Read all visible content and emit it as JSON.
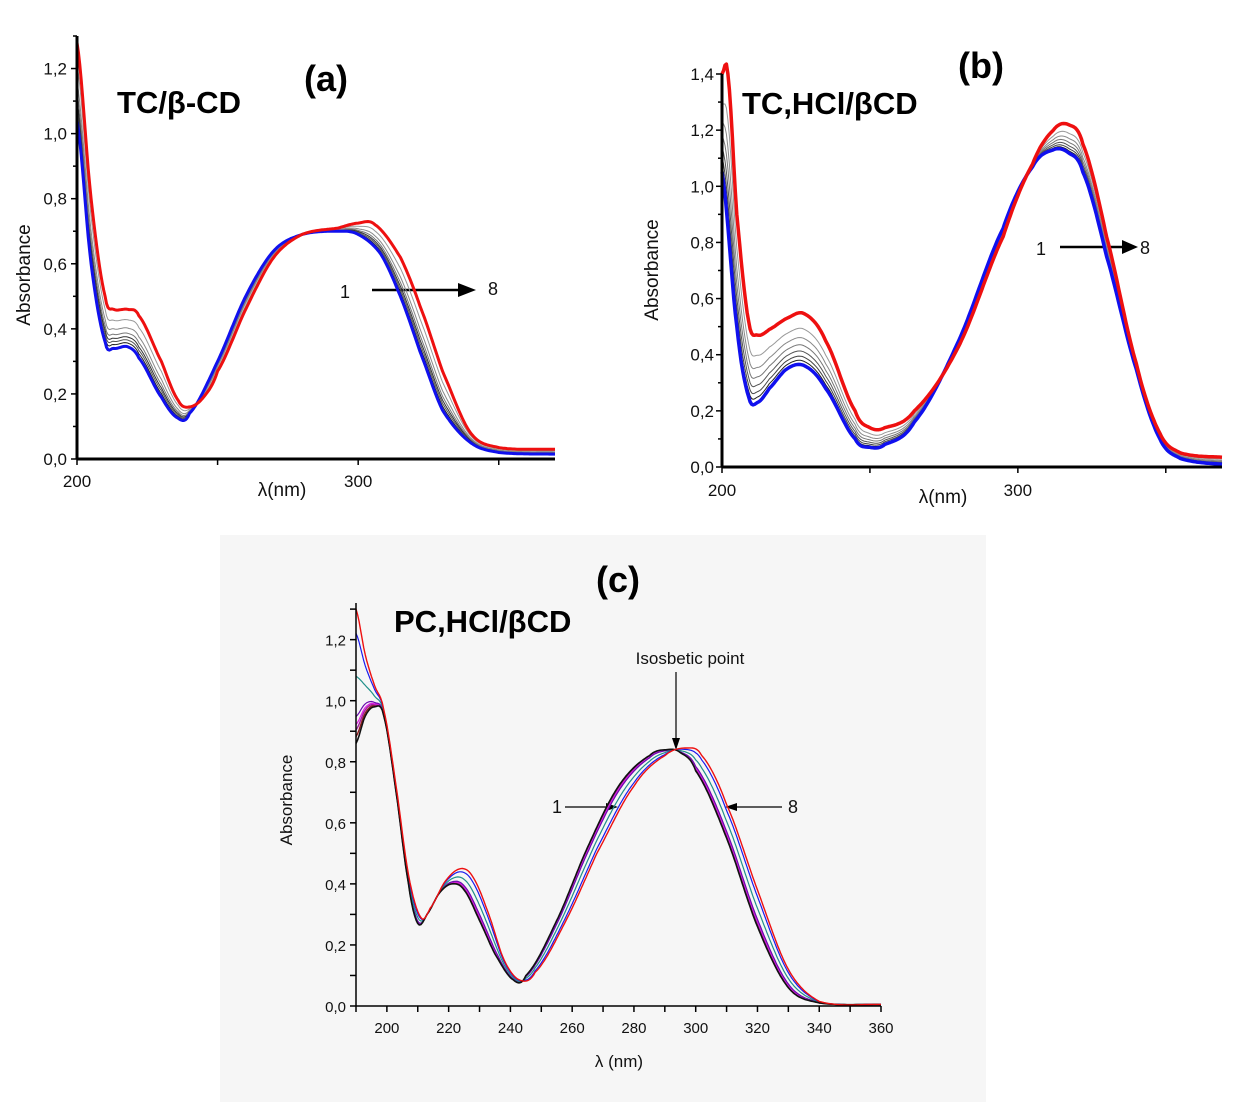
{
  "chart_data": [
    {
      "type": "line",
      "panel_label": "(a)",
      "title": "TC/β-CD",
      "xlabel": "λ(nm)",
      "ylabel": "Absorbance",
      "xlim": [
        200,
        370
      ],
      "ylim": [
        0,
        1.3
      ],
      "xticks": [
        200,
        250,
        300,
        350
      ],
      "xtick_labels": [
        "200",
        "",
        "300",
        ""
      ],
      "yticks": [
        0,
        0.2,
        0.4,
        0.6,
        0.8,
        1.0,
        1.2
      ],
      "ytick_labels": [
        "0,0",
        "0,2",
        "0,4",
        "0,6",
        "0,8",
        "1,0",
        "1,2"
      ],
      "annotation": {
        "from": "1",
        "to": "8"
      },
      "series": [
        {
          "name": "1",
          "color": "#1010ee",
          "width": 3,
          "x": [
            200,
            205,
            210,
            213,
            218,
            222,
            230,
            236,
            240,
            250,
            260,
            270,
            280,
            293,
            300,
            308,
            315,
            322,
            330,
            340,
            350,
            370
          ],
          "y": [
            1.04,
            0.6,
            0.36,
            0.34,
            0.345,
            0.31,
            0.19,
            0.125,
            0.14,
            0.3,
            0.5,
            0.64,
            0.69,
            0.7,
            0.69,
            0.63,
            0.5,
            0.33,
            0.15,
            0.05,
            0.02,
            0.015
          ]
        },
        {
          "name": "2",
          "color": "#222222",
          "width": 1,
          "blend": 0.1
        },
        {
          "name": "3",
          "color": "#555555",
          "width": 1,
          "blend": 0.18
        },
        {
          "name": "4",
          "color": "#333333",
          "width": 1,
          "blend": 0.26
        },
        {
          "name": "5",
          "color": "#777777",
          "width": 1,
          "blend": 0.36
        },
        {
          "name": "6",
          "color": "#888888",
          "width": 1,
          "blend": 0.5
        },
        {
          "name": "7",
          "color": "#999999",
          "width": 1,
          "blend": 0.72
        },
        {
          "name": "8",
          "color": "#ee1010",
          "width": 3,
          "x": [
            200,
            205,
            210,
            213,
            218,
            222,
            230,
            236,
            240,
            245,
            250,
            260,
            270,
            280,
            293,
            300,
            306,
            315,
            322,
            330,
            340,
            350,
            370
          ],
          "y": [
            1.28,
            0.8,
            0.5,
            0.46,
            0.46,
            0.44,
            0.3,
            0.18,
            0.16,
            0.19,
            0.27,
            0.46,
            0.62,
            0.69,
            0.71,
            0.725,
            0.72,
            0.62,
            0.47,
            0.27,
            0.08,
            0.035,
            0.03
          ]
        }
      ]
    },
    {
      "type": "line",
      "panel_label": "(b)",
      "title": "TC,HCl/βCD",
      "xlabel": "λ(nm)",
      "ylabel": "Absorbance",
      "xlim": [
        200,
        369
      ],
      "ylim": [
        0,
        1.4
      ],
      "xticks": [
        200,
        250,
        300,
        350
      ],
      "xtick_labels": [
        "200",
        "",
        "300",
        ""
      ],
      "yticks": [
        0,
        0.2,
        0.4,
        0.6,
        0.8,
        1.0,
        1.2,
        1.4
      ],
      "ytick_labels": [
        "0,0",
        "0,2",
        "0,4",
        "0,6",
        "0,8",
        "1,0",
        "1,2",
        "1,4"
      ],
      "annotation": {
        "from": "1",
        "to": "8"
      },
      "series": [
        {
          "name": "1",
          "color": "#1010ee",
          "width": 3.5,
          "x": [
            200,
            205,
            209,
            212,
            216,
            222,
            228,
            235,
            245,
            250,
            255,
            265,
            280,
            295,
            305,
            312,
            317,
            322,
            330,
            340,
            348,
            355,
            369
          ],
          "y": [
            1.05,
            0.5,
            0.25,
            0.23,
            0.28,
            0.35,
            0.36,
            0.28,
            0.1,
            0.07,
            0.08,
            0.16,
            0.45,
            0.85,
            1.07,
            1.13,
            1.12,
            1.05,
            0.75,
            0.35,
            0.1,
            0.03,
            0.01
          ]
        },
        {
          "name": "2",
          "color": "#222222",
          "width": 1,
          "blend": 0.08
        },
        {
          "name": "3",
          "color": "#444444",
          "width": 1,
          "blend": 0.16
        },
        {
          "name": "4",
          "color": "#555555",
          "width": 1,
          "blend": 0.26
        },
        {
          "name": "5",
          "color": "#777777",
          "width": 1,
          "blend": 0.38
        },
        {
          "name": "6",
          "color": "#888888",
          "width": 1,
          "blend": 0.52
        },
        {
          "name": "7",
          "color": "#999999",
          "width": 1,
          "blend": 0.7
        },
        {
          "name": "8",
          "color": "#ee1010",
          "width": 3.5,
          "x": [
            200,
            202,
            205,
            209,
            212,
            216,
            222,
            228,
            235,
            245,
            250,
            255,
            265,
            280,
            295,
            305,
            312,
            317,
            322,
            330,
            340,
            348,
            355,
            369
          ],
          "y": [
            1.4,
            1.4,
            0.9,
            0.52,
            0.47,
            0.49,
            0.53,
            0.545,
            0.45,
            0.2,
            0.14,
            0.14,
            0.2,
            0.43,
            0.82,
            1.08,
            1.2,
            1.22,
            1.15,
            0.82,
            0.37,
            0.12,
            0.05,
            0.035
          ]
        }
      ]
    },
    {
      "type": "line",
      "panel_label": "(c)",
      "title": "PC,HCl/βCD",
      "xlabel": "λ (nm)",
      "ylabel": "Absorbance",
      "xlim": [
        190,
        360
      ],
      "ylim": [
        0,
        1.32
      ],
      "xticks": [
        190,
        200,
        210,
        220,
        230,
        240,
        250,
        260,
        270,
        280,
        290,
        300,
        310,
        320,
        330,
        340,
        350,
        360
      ],
      "xtick_labels": [
        "",
        "200",
        "",
        "220",
        "",
        "240",
        "",
        "260",
        "",
        "280",
        "",
        "300",
        "",
        "320",
        "",
        "340",
        "",
        "360"
      ],
      "yticks": [
        0,
        0.1,
        0.2,
        0.3,
        0.4,
        0.5,
        0.6,
        0.7,
        0.8,
        0.9,
        1.0,
        1.1,
        1.2,
        1.3
      ],
      "ytick_labels": [
        "0,0",
        "",
        "0,2",
        "",
        "0,4",
        "",
        "0,6",
        "",
        "0,8",
        "",
        "1,0",
        "",
        "1,2",
        ""
      ],
      "isosbestic_label": "Isosbetic point",
      "isosbestic_point": {
        "x": 293,
        "y": 0.835
      },
      "annotation": {
        "from": "1",
        "to": "8"
      },
      "series": [
        {
          "name": "1",
          "color": "#111111",
          "width": 1.6,
          "x": [
            190,
            193,
            196,
            199,
            203,
            207,
            210,
            213,
            217,
            221,
            225,
            230,
            235,
            241,
            245,
            255,
            265,
            275,
            285,
            291,
            295,
            300,
            310,
            320,
            330,
            340,
            360
          ],
          "y": [
            0.86,
            0.95,
            0.98,
            0.95,
            0.7,
            0.4,
            0.27,
            0.3,
            0.37,
            0.4,
            0.38,
            0.28,
            0.17,
            0.085,
            0.1,
            0.28,
            0.52,
            0.72,
            0.82,
            0.84,
            0.83,
            0.77,
            0.55,
            0.26,
            0.06,
            0.01,
            0.005
          ]
        },
        {
          "name": "2",
          "color": "#8b1a1a",
          "width": 1.4,
          "blend": 0.05
        },
        {
          "name": "3",
          "color": "#a020a0",
          "width": 1.4,
          "blend": 0.1
        },
        {
          "name": "4",
          "color": "#e020e0",
          "width": 1.2,
          "blend": 0.14
        },
        {
          "name": "5",
          "color": "#6a0dad",
          "width": 1.2,
          "blend": 0.2
        },
        {
          "name": "6",
          "color": "#20908a",
          "width": 1.2,
          "blend": 0.5
        },
        {
          "name": "7",
          "color": "#1a1aee",
          "width": 1.2,
          "blend": 0.82
        },
        {
          "name": "8",
          "color": "#ee1010",
          "width": 1.4,
          "x": [
            190,
            193,
            196,
            199,
            203,
            207,
            211,
            214,
            219,
            224,
            228,
            233,
            238,
            243,
            248,
            258,
            268,
            280,
            290,
            297,
            302,
            310,
            320,
            330,
            340,
            360
          ],
          "y": [
            1.3,
            1.15,
            1.05,
            0.97,
            0.72,
            0.43,
            0.29,
            0.32,
            0.41,
            0.45,
            0.42,
            0.3,
            0.15,
            0.085,
            0.11,
            0.28,
            0.5,
            0.72,
            0.82,
            0.845,
            0.82,
            0.66,
            0.38,
            0.12,
            0.015,
            0.005
          ]
        }
      ]
    }
  ]
}
